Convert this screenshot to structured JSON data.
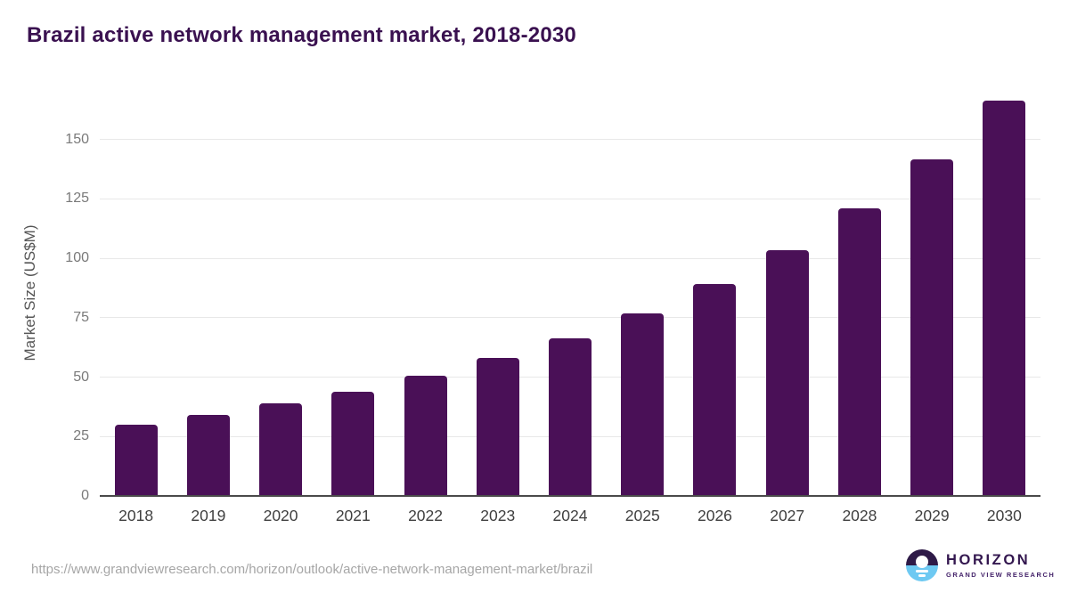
{
  "header": {
    "title": "Brazil active network management market, 2018-2030",
    "title_color": "#3a1150"
  },
  "chart_data": {
    "type": "bar",
    "title": "Brazil active network management market, 2018-2030",
    "categories": [
      "2018",
      "2019",
      "2020",
      "2021",
      "2022",
      "2023",
      "2024",
      "2025",
      "2026",
      "2027",
      "2028",
      "2029",
      "2030"
    ],
    "values": [
      30,
      34,
      39,
      44,
      50.5,
      58,
      66.5,
      77,
      89,
      103.5,
      121,
      141.5,
      166.5
    ],
    "xlabel": "",
    "ylabel": "Market Size (US$M)",
    "ylim": [
      0,
      171
    ],
    "yticks": [
      0,
      25,
      50,
      75,
      100,
      125,
      150
    ],
    "grid": "horizontal",
    "legend": "none",
    "colors": {
      "bar": "#4a1057",
      "gridline": "#e8e8e8",
      "axis_line": "#4a4a4a",
      "ytick_label": "#7a7a7a",
      "xtick_label": "#3f3f3f",
      "ylabel": "#555555"
    }
  },
  "footer": {
    "source_url": "https://www.grandviewresearch.com/horizon/outlook/active-network-management-market/brazil",
    "source_url_color": "#a6a6a6",
    "logo": {
      "brand": "HORIZON",
      "subtitle": "GRAND VIEW RESEARCH",
      "colors": {
        "brand_text": "#33174f",
        "subtitle_text": "#45246b",
        "circle_top": "#2e1a47",
        "circle_bottom": "#6ec9f2"
      }
    }
  }
}
